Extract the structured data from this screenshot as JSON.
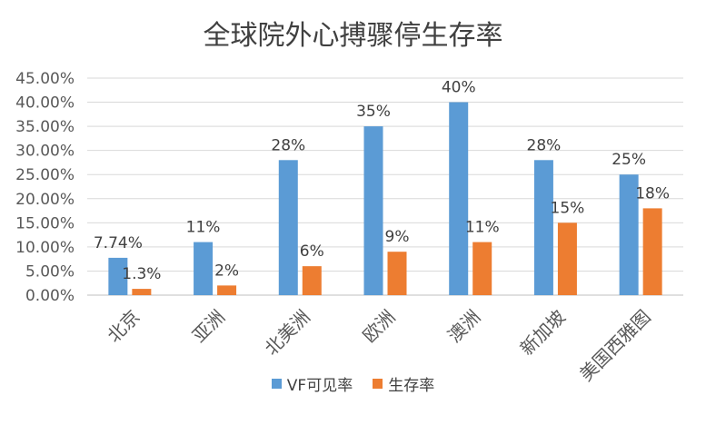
{
  "chart_data": {
    "type": "bar",
    "title": "全球院外心搏骤停生存率",
    "categories": [
      "北京",
      "亚洲",
      "北美洲",
      "欧洲",
      "澳洲",
      "新加坡",
      "美国西雅图"
    ],
    "series": [
      {
        "name": "VF可见率",
        "color": "#5B9BD5",
        "values": [
          7.74,
          11,
          28,
          35,
          40,
          28,
          25
        ],
        "labels": [
          "7.74%",
          "11%",
          "28%",
          "35%",
          "40%",
          "28%",
          "25%"
        ]
      },
      {
        "name": "生存率",
        "color": "#ED7D31",
        "values": [
          1.3,
          2,
          6,
          9,
          11,
          15,
          18
        ],
        "labels": [
          "1.3%",
          "2%",
          "6%",
          "9%",
          "11%",
          "15%",
          "18%"
        ]
      }
    ],
    "ylim": [
      0,
      45
    ],
    "ytick_labels": [
      "0.00%",
      "5.00%",
      "10.00%",
      "15.00%",
      "20.00%",
      "25.00%",
      "30.00%",
      "35.00%",
      "40.00%",
      "45.00%"
    ],
    "grid": true,
    "legend_position": "bottom"
  }
}
